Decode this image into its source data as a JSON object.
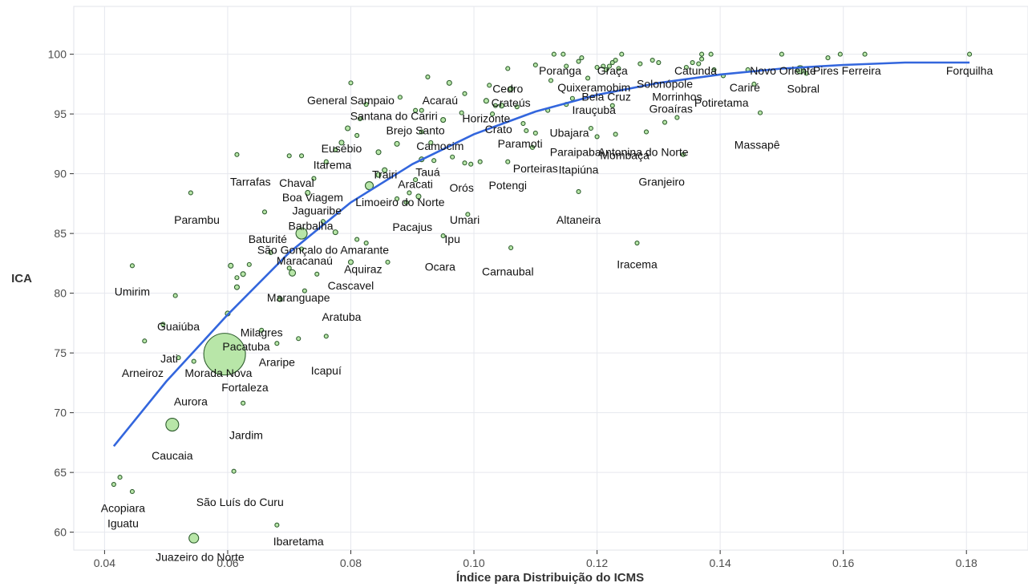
{
  "chart_data": {
    "type": "scatter",
    "xlabel": "Índice para Distribuição do ICMS",
    "ylabel": "ICA",
    "xlim": [
      0.035,
      0.19
    ],
    "ylim": [
      58.5,
      104
    ],
    "grid": true,
    "x_ticks": [
      {
        "v": 0.04,
        "label": "0.04"
      },
      {
        "v": 0.06,
        "label": "0.06"
      },
      {
        "v": 0.08,
        "label": "0.08"
      },
      {
        "v": 0.1,
        "label": "0.10"
      },
      {
        "v": 0.12,
        "label": "0.12"
      },
      {
        "v": 0.14,
        "label": "0.14"
      },
      {
        "v": 0.16,
        "label": "0.16"
      },
      {
        "v": 0.18,
        "label": "0.18"
      }
    ],
    "y_ticks": [
      {
        "v": 60,
        "label": "60"
      },
      {
        "v": 65,
        "label": "65"
      },
      {
        "v": 70,
        "label": "70"
      },
      {
        "v": 75,
        "label": "75"
      },
      {
        "v": 80,
        "label": "80"
      },
      {
        "v": 85,
        "label": "85"
      },
      {
        "v": 90,
        "label": "90"
      },
      {
        "v": 95,
        "label": "95"
      },
      {
        "v": 100,
        "label": "100"
      }
    ],
    "trend_line": [
      [
        0.0415,
        67.2
      ],
      [
        0.05,
        72.6
      ],
      [
        0.06,
        78.2
      ],
      [
        0.07,
        83.4
      ],
      [
        0.08,
        87.6
      ],
      [
        0.09,
        90.8
      ],
      [
        0.1,
        93.3
      ],
      [
        0.11,
        95.2
      ],
      [
        0.12,
        96.6
      ],
      [
        0.13,
        97.6
      ],
      [
        0.14,
        98.3
      ],
      [
        0.15,
        98.8
      ],
      [
        0.16,
        99.1
      ],
      [
        0.17,
        99.3
      ],
      [
        0.1805,
        99.3
      ]
    ],
    "labels": [
      {
        "text": "Forquilha",
        "x": 0.1805,
        "y": 98.3
      },
      {
        "text": "Pires Ferreira",
        "x": 0.1606,
        "y": 98.3
      },
      {
        "text": "Novo Oriente",
        "x": 0.1502,
        "y": 98.3
      },
      {
        "text": "Sobral",
        "x": 0.1535,
        "y": 96.8
      },
      {
        "text": "Cariré",
        "x": 0.144,
        "y": 96.9
      },
      {
        "text": "Potiretama",
        "x": 0.1402,
        "y": 95.6
      },
      {
        "text": "Massapê",
        "x": 0.146,
        "y": 92.1
      },
      {
        "text": "Catunda",
        "x": 0.136,
        "y": 98.3
      },
      {
        "text": "Solonópole",
        "x": 0.131,
        "y": 97.2
      },
      {
        "text": "Morrinhos",
        "x": 0.133,
        "y": 96.1
      },
      {
        "text": "Groaíras",
        "x": 0.132,
        "y": 95.1
      },
      {
        "text": "Antonina do Norte",
        "x": 0.1275,
        "y": 91.5
      },
      {
        "text": "Granjeiro",
        "x": 0.1305,
        "y": 89.0
      },
      {
        "text": "Iracema",
        "x": 0.1265,
        "y": 82.1
      },
      {
        "text": "Graça",
        "x": 0.1225,
        "y": 98.3
      },
      {
        "text": "Poranga",
        "x": 0.114,
        "y": 98.3
      },
      {
        "text": "Quixeramobim",
        "x": 0.1195,
        "y": 96.9
      },
      {
        "text": "Bela Cruz",
        "x": 0.1215,
        "y": 96.1
      },
      {
        "text": "Irauçuba",
        "x": 0.1195,
        "y": 95.0
      },
      {
        "text": "Ubajara",
        "x": 0.1155,
        "y": 93.1
      },
      {
        "text": "Mombaça",
        "x": 0.1245,
        "y": 91.2
      },
      {
        "text": "Paraipaba",
        "x": 0.1165,
        "y": 91.5
      },
      {
        "text": "Itapiúna",
        "x": 0.117,
        "y": 90.0
      },
      {
        "text": "Altaneira",
        "x": 0.117,
        "y": 85.8
      },
      {
        "text": "Cedro",
        "x": 0.1055,
        "y": 96.8
      },
      {
        "text": "Crateús",
        "x": 0.106,
        "y": 95.6
      },
      {
        "text": "Horizonte",
        "x": 0.102,
        "y": 94.3
      },
      {
        "text": "Crato",
        "x": 0.104,
        "y": 93.4
      },
      {
        "text": "Paramoti",
        "x": 0.1075,
        "y": 92.2
      },
      {
        "text": "Porteiras",
        "x": 0.11,
        "y": 90.1
      },
      {
        "text": "Potengi",
        "x": 0.1055,
        "y": 88.7
      },
      {
        "text": "Carnaubal",
        "x": 0.1055,
        "y": 81.5
      },
      {
        "text": "Acaraú",
        "x": 0.0945,
        "y": 95.8
      },
      {
        "text": "General Sampaio",
        "x": 0.08,
        "y": 95.8
      },
      {
        "text": "Santana do Cariri",
        "x": 0.087,
        "y": 94.5
      },
      {
        "text": "Brejo Santo",
        "x": 0.0905,
        "y": 93.3
      },
      {
        "text": "Camocim",
        "x": 0.0945,
        "y": 92.0
      },
      {
        "text": "Eusébio",
        "x": 0.0785,
        "y": 91.8
      },
      {
        "text": "Itarema",
        "x": 0.077,
        "y": 90.4
      },
      {
        "text": "Trairi",
        "x": 0.0855,
        "y": 89.6
      },
      {
        "text": "Tauá",
        "x": 0.0925,
        "y": 89.8
      },
      {
        "text": "Aracati",
        "x": 0.0905,
        "y": 88.8
      },
      {
        "text": "Orós",
        "x": 0.098,
        "y": 88.5
      },
      {
        "text": "Limoeiro do Norte",
        "x": 0.088,
        "y": 87.3
      },
      {
        "text": "Umari",
        "x": 0.0985,
        "y": 85.8
      },
      {
        "text": "Pacajus",
        "x": 0.09,
        "y": 85.2
      },
      {
        "text": "Ipu",
        "x": 0.0965,
        "y": 84.2
      },
      {
        "text": "Ocara",
        "x": 0.0945,
        "y": 81.9
      },
      {
        "text": "Chaval",
        "x": 0.0712,
        "y": 88.9
      },
      {
        "text": "Tarrafas",
        "x": 0.0637,
        "y": 89.0
      },
      {
        "text": "Boa Viagem",
        "x": 0.0738,
        "y": 87.7
      },
      {
        "text": "Jaguaribe",
        "x": 0.0745,
        "y": 86.6
      },
      {
        "text": "Parambu",
        "x": 0.055,
        "y": 85.8
      },
      {
        "text": "Barbalha",
        "x": 0.0735,
        "y": 85.3
      },
      {
        "text": "Baturité",
        "x": 0.0665,
        "y": 84.2
      },
      {
        "text": "São Gonçalo do Amarante",
        "x": 0.0755,
        "y": 83.3
      },
      {
        "text": "Maracanaú",
        "x": 0.0725,
        "y": 82.4
      },
      {
        "text": "Aquiraz",
        "x": 0.082,
        "y": 81.7
      },
      {
        "text": "Cascavel",
        "x": 0.08,
        "y": 80.3
      },
      {
        "text": "Maranguape",
        "x": 0.0715,
        "y": 79.3
      },
      {
        "text": "Aratuba",
        "x": 0.0785,
        "y": 77.7
      },
      {
        "text": "Umirim",
        "x": 0.0445,
        "y": 79.8
      },
      {
        "text": "Guaiúba",
        "x": 0.052,
        "y": 76.9
      },
      {
        "text": "Milagres",
        "x": 0.0655,
        "y": 76.4
      },
      {
        "text": "Pacatuba",
        "x": 0.063,
        "y": 75.2
      },
      {
        "text": "Jati",
        "x": 0.0505,
        "y": 74.2
      },
      {
        "text": "Araripe",
        "x": 0.068,
        "y": 73.9
      },
      {
        "text": "Arneiroz",
        "x": 0.0462,
        "y": 73.0
      },
      {
        "text": "Morada Nova",
        "x": 0.0585,
        "y": 73.0
      },
      {
        "text": "Icapuí",
        "x": 0.076,
        "y": 73.2
      },
      {
        "text": "Fortaleza",
        "x": 0.0628,
        "y": 71.8
      },
      {
        "text": "Aurora",
        "x": 0.054,
        "y": 70.6
      },
      {
        "text": "Jardim",
        "x": 0.063,
        "y": 67.8
      },
      {
        "text": "Caucaia",
        "x": 0.051,
        "y": 66.1
      },
      {
        "text": "São Luís do Curu",
        "x": 0.062,
        "y": 62.2
      },
      {
        "text": "Acopiara",
        "x": 0.043,
        "y": 61.7
      },
      {
        "text": "Iguatu",
        "x": 0.043,
        "y": 60.4
      },
      {
        "text": "Ibaretama",
        "x": 0.0715,
        "y": 58.9
      },
      {
        "text": "Juazeiro do Norte",
        "x": 0.0555,
        "y": 57.6
      }
    ],
    "points": [
      {
        "x": 0.0595,
        "y": 74.9,
        "r": 26
      },
      {
        "x": 0.051,
        "y": 69.0,
        "r": 8
      },
      {
        "x": 0.0545,
        "y": 59.5,
        "r": 6
      },
      {
        "x": 0.072,
        "y": 85.0,
        "r": 7
      },
      {
        "x": 0.083,
        "y": 89.0,
        "r": 5
      },
      {
        "x": 0.153,
        "y": 98.7,
        "r": 5
      },
      {
        "x": 0.0705,
        "y": 81.7,
        "r": 4
      },
      {
        "x": 0.06,
        "y": 78.3,
        "r": 3
      },
      {
        "x": 0.0615,
        "y": 80.5,
        "r": 3
      },
      {
        "x": 0.0685,
        "y": 79.5,
        "r": 3
      },
      {
        "x": 0.0425,
        "y": 64.6,
        "r": 2.5
      },
      {
        "x": 0.0445,
        "y": 63.4,
        "r": 2.5
      },
      {
        "x": 0.0415,
        "y": 64.0,
        "r": 2.5
      },
      {
        "x": 0.0445,
        "y": 82.3,
        "r": 2.5
      },
      {
        "x": 0.0515,
        "y": 79.8,
        "r": 2.5
      },
      {
        "x": 0.0465,
        "y": 76.0,
        "r": 2.5
      },
      {
        "x": 0.0495,
        "y": 77.4,
        "r": 2.5
      },
      {
        "x": 0.052,
        "y": 74.6,
        "r": 2.5
      },
      {
        "x": 0.0545,
        "y": 74.3,
        "r": 2.5
      },
      {
        "x": 0.0625,
        "y": 70.8,
        "r": 2.5
      },
      {
        "x": 0.061,
        "y": 65.1,
        "r": 2.5
      },
      {
        "x": 0.068,
        "y": 60.6,
        "r": 2.5
      },
      {
        "x": 0.0715,
        "y": 76.2,
        "r": 2.5
      },
      {
        "x": 0.076,
        "y": 76.4,
        "r": 2.5
      },
      {
        "x": 0.068,
        "y": 75.8,
        "r": 2.5
      },
      {
        "x": 0.0655,
        "y": 76.9,
        "r": 2.5
      },
      {
        "x": 0.0605,
        "y": 82.3,
        "r": 3
      },
      {
        "x": 0.0625,
        "y": 81.6,
        "r": 3
      },
      {
        "x": 0.0615,
        "y": 81.3,
        "r": 2.5
      },
      {
        "x": 0.0635,
        "y": 82.4,
        "r": 2.5
      },
      {
        "x": 0.07,
        "y": 82.1,
        "r": 2.5
      },
      {
        "x": 0.0745,
        "y": 81.6,
        "r": 2.5
      },
      {
        "x": 0.0725,
        "y": 80.2,
        "r": 2.5
      },
      {
        "x": 0.067,
        "y": 83.4,
        "r": 2.5
      },
      {
        "x": 0.072,
        "y": 83.7,
        "r": 2.5
      },
      {
        "x": 0.08,
        "y": 82.6,
        "r": 3
      },
      {
        "x": 0.086,
        "y": 82.6,
        "r": 2.5
      },
      {
        "x": 0.081,
        "y": 84.5,
        "r": 2.5
      },
      {
        "x": 0.0825,
        "y": 84.2,
        "r": 2.5
      },
      {
        "x": 0.0775,
        "y": 85.1,
        "r": 3
      },
      {
        "x": 0.0755,
        "y": 86.0,
        "r": 2.5
      },
      {
        "x": 0.066,
        "y": 86.8,
        "r": 2.5
      },
      {
        "x": 0.054,
        "y": 88.4,
        "r": 2.5
      },
      {
        "x": 0.0615,
        "y": 91.6,
        "r": 2.5
      },
      {
        "x": 0.07,
        "y": 91.5,
        "r": 2.5
      },
      {
        "x": 0.072,
        "y": 91.5,
        "r": 2.5
      },
      {
        "x": 0.073,
        "y": 88.4,
        "r": 3
      },
      {
        "x": 0.074,
        "y": 89.6,
        "r": 2.5
      },
      {
        "x": 0.076,
        "y": 91.0,
        "r": 2.5
      },
      {
        "x": 0.0775,
        "y": 92.0,
        "r": 2.5
      },
      {
        "x": 0.0785,
        "y": 92.6,
        "r": 3
      },
      {
        "x": 0.0795,
        "y": 93.8,
        "r": 3
      },
      {
        "x": 0.081,
        "y": 93.2,
        "r": 2.5
      },
      {
        "x": 0.0815,
        "y": 94.6,
        "r": 2.5
      },
      {
        "x": 0.08,
        "y": 97.6,
        "r": 2.5
      },
      {
        "x": 0.0825,
        "y": 95.8,
        "r": 2.5
      },
      {
        "x": 0.0845,
        "y": 91.8,
        "r": 3
      },
      {
        "x": 0.0845,
        "y": 89.9,
        "r": 3
      },
      {
        "x": 0.0855,
        "y": 90.3,
        "r": 3
      },
      {
        "x": 0.0875,
        "y": 92.5,
        "r": 3
      },
      {
        "x": 0.088,
        "y": 96.4,
        "r": 2.5
      },
      {
        "x": 0.0905,
        "y": 95.3,
        "r": 2.5
      },
      {
        "x": 0.0915,
        "y": 95.3,
        "r": 2.5
      },
      {
        "x": 0.0925,
        "y": 98.1,
        "r": 2.5
      },
      {
        "x": 0.0915,
        "y": 93.5,
        "r": 2.5
      },
      {
        "x": 0.093,
        "y": 92.6,
        "r": 2.5
      },
      {
        "x": 0.0915,
        "y": 91.2,
        "r": 3
      },
      {
        "x": 0.0935,
        "y": 91.1,
        "r": 2.5
      },
      {
        "x": 0.0905,
        "y": 89.5,
        "r": 2.5
      },
      {
        "x": 0.091,
        "y": 88.1,
        "r": 3
      },
      {
        "x": 0.0895,
        "y": 88.4,
        "r": 2.5
      },
      {
        "x": 0.0875,
        "y": 87.9,
        "r": 2.5
      },
      {
        "x": 0.089,
        "y": 87.6,
        "r": 2.5
      },
      {
        "x": 0.095,
        "y": 84.8,
        "r": 2.5
      },
      {
        "x": 0.099,
        "y": 86.6,
        "r": 2.5
      },
      {
        "x": 0.095,
        "y": 94.5,
        "r": 3
      },
      {
        "x": 0.096,
        "y": 97.6,
        "r": 3
      },
      {
        "x": 0.0985,
        "y": 96.7,
        "r": 2.5
      },
      {
        "x": 0.098,
        "y": 95.1,
        "r": 2.5
      },
      {
        "x": 0.0965,
        "y": 91.4,
        "r": 2.5
      },
      {
        "x": 0.0985,
        "y": 90.9,
        "r": 2.5
      },
      {
        "x": 0.0995,
        "y": 90.8,
        "r": 2.5
      },
      {
        "x": 0.101,
        "y": 91.0,
        "r": 2.5
      },
      {
        "x": 0.102,
        "y": 96.1,
        "r": 3
      },
      {
        "x": 0.1025,
        "y": 97.4,
        "r": 2.5
      },
      {
        "x": 0.103,
        "y": 95.0,
        "r": 2.5
      },
      {
        "x": 0.1035,
        "y": 95.7,
        "r": 2.5
      },
      {
        "x": 0.1055,
        "y": 98.8,
        "r": 2.5
      },
      {
        "x": 0.106,
        "y": 97.1,
        "r": 3
      },
      {
        "x": 0.1045,
        "y": 95.7,
        "r": 3
      },
      {
        "x": 0.107,
        "y": 95.6,
        "r": 2.5
      },
      {
        "x": 0.108,
        "y": 94.2,
        "r": 2.5
      },
      {
        "x": 0.1085,
        "y": 93.6,
        "r": 2.5
      },
      {
        "x": 0.11,
        "y": 93.4,
        "r": 2.5
      },
      {
        "x": 0.1095,
        "y": 92.2,
        "r": 2.5
      },
      {
        "x": 0.1055,
        "y": 91.0,
        "r": 2.5
      },
      {
        "x": 0.106,
        "y": 83.8,
        "r": 2.5
      },
      {
        "x": 0.11,
        "y": 99.1,
        "r": 2.5
      },
      {
        "x": 0.112,
        "y": 95.3,
        "r": 2.5
      },
      {
        "x": 0.1125,
        "y": 97.8,
        "r": 2.5
      },
      {
        "x": 0.113,
        "y": 100.0,
        "r": 2.5
      },
      {
        "x": 0.1145,
        "y": 100.0,
        "r": 2.5
      },
      {
        "x": 0.115,
        "y": 99.0,
        "r": 2.5
      },
      {
        "x": 0.115,
        "y": 95.8,
        "r": 2.5
      },
      {
        "x": 0.116,
        "y": 96.3,
        "r": 2.5
      },
      {
        "x": 0.117,
        "y": 99.4,
        "r": 2.5
      },
      {
        "x": 0.1175,
        "y": 99.7,
        "r": 2.5
      },
      {
        "x": 0.1185,
        "y": 98.0,
        "r": 2.5
      },
      {
        "x": 0.119,
        "y": 93.8,
        "r": 2.5
      },
      {
        "x": 0.12,
        "y": 93.1,
        "r": 2.5
      },
      {
        "x": 0.117,
        "y": 88.5,
        "r": 2.5
      },
      {
        "x": 0.12,
        "y": 98.9,
        "r": 2.5
      },
      {
        "x": 0.121,
        "y": 99.0,
        "r": 2.5
      },
      {
        "x": 0.1215,
        "y": 98.7,
        "r": 2.5
      },
      {
        "x": 0.122,
        "y": 99.0,
        "r": 2.5
      },
      {
        "x": 0.1225,
        "y": 99.3,
        "r": 2.5
      },
      {
        "x": 0.123,
        "y": 99.5,
        "r": 2.5
      },
      {
        "x": 0.1235,
        "y": 98.8,
        "r": 2.5
      },
      {
        "x": 0.124,
        "y": 100.0,
        "r": 2.5
      },
      {
        "x": 0.1225,
        "y": 95.7,
        "r": 2.5
      },
      {
        "x": 0.123,
        "y": 93.3,
        "r": 2.5
      },
      {
        "x": 0.127,
        "y": 99.2,
        "r": 2.5
      },
      {
        "x": 0.128,
        "y": 93.5,
        "r": 2.5
      },
      {
        "x": 0.129,
        "y": 99.5,
        "r": 2.5
      },
      {
        "x": 0.13,
        "y": 99.3,
        "r": 2.5
      },
      {
        "x": 0.131,
        "y": 94.3,
        "r": 2.5
      },
      {
        "x": 0.133,
        "y": 94.7,
        "r": 2.5
      },
      {
        "x": 0.134,
        "y": 91.6,
        "r": 2.5
      },
      {
        "x": 0.1265,
        "y": 84.2,
        "r": 2.5
      },
      {
        "x": 0.1345,
        "y": 98.9,
        "r": 2.5
      },
      {
        "x": 0.1355,
        "y": 99.3,
        "r": 2.5
      },
      {
        "x": 0.1365,
        "y": 99.2,
        "r": 2.5
      },
      {
        "x": 0.137,
        "y": 99.6,
        "r": 2.5
      },
      {
        "x": 0.137,
        "y": 100.0,
        "r": 2.5
      },
      {
        "x": 0.1385,
        "y": 100.0,
        "r": 2.5
      },
      {
        "x": 0.139,
        "y": 98.7,
        "r": 2.5
      },
      {
        "x": 0.1405,
        "y": 98.2,
        "r": 2.5
      },
      {
        "x": 0.1445,
        "y": 98.7,
        "r": 2.5
      },
      {
        "x": 0.1455,
        "y": 97.5,
        "r": 2.5
      },
      {
        "x": 0.1465,
        "y": 95.1,
        "r": 2.5
      },
      {
        "x": 0.15,
        "y": 100.0,
        "r": 2.5
      },
      {
        "x": 0.154,
        "y": 98.4,
        "r": 2.5
      },
      {
        "x": 0.1575,
        "y": 99.7,
        "r": 2.5
      },
      {
        "x": 0.1595,
        "y": 100.0,
        "r": 2.5
      },
      {
        "x": 0.1635,
        "y": 100.0,
        "r": 2.5
      },
      {
        "x": 0.1805,
        "y": 100.0,
        "r": 2.5
      }
    ]
  }
}
